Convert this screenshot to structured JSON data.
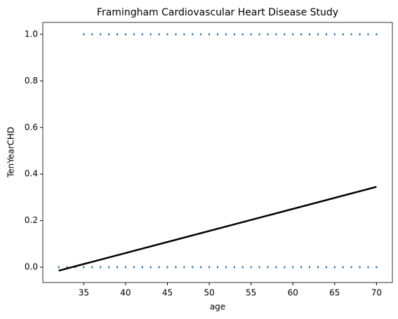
{
  "chart_data": {
    "type": "scatter",
    "title": "Framingham Cardiovascular Heart Disease Study",
    "xlabel": "age",
    "ylabel": "TenYearCHD",
    "xlim": [
      30.1,
      71.9
    ],
    "ylim": [
      -0.066,
      1.051
    ],
    "xticks": [
      35,
      40,
      45,
      50,
      55,
      60,
      65,
      70
    ],
    "yticks": [
      {
        "value": 0,
        "label": "0.0"
      },
      {
        "value": 0.2,
        "label": "0.2"
      },
      {
        "value": 0.4,
        "label": "0.4"
      },
      {
        "value": 0.6,
        "label": "0.6"
      },
      {
        "value": 0.8,
        "label": "0.8"
      },
      {
        "value": 1,
        "label": "1.0"
      }
    ],
    "series": [
      {
        "color": "#1f77b4",
        "x": [
          32,
          33,
          34,
          35,
          36,
          37,
          38,
          39,
          40,
          41,
          42,
          43,
          44,
          45,
          46,
          47,
          48,
          49,
          50,
          51,
          52,
          53,
          54,
          55,
          56,
          57,
          58,
          59,
          60,
          61,
          62,
          63,
          64,
          65,
          66,
          67,
          68,
          69,
          70
        ],
        "values": [
          0,
          0,
          0,
          0,
          0,
          0,
          0,
          0,
          0,
          0,
          0,
          0,
          0,
          0,
          0,
          0,
          0,
          0,
          0,
          0,
          0,
          0,
          0,
          0,
          0,
          0,
          0,
          0,
          0,
          0,
          0,
          0,
          0,
          0,
          0,
          0,
          0,
          0,
          0
        ]
      },
      {
        "color": "#1f77b4",
        "x": [
          35,
          36,
          37,
          38,
          39,
          40,
          41,
          42,
          43,
          44,
          45,
          46,
          47,
          48,
          49,
          50,
          51,
          52,
          53,
          54,
          55,
          56,
          57,
          58,
          59,
          60,
          61,
          62,
          63,
          64,
          65,
          66,
          67,
          68,
          69,
          70
        ],
        "values": [
          1,
          1,
          1,
          1,
          1,
          1,
          1,
          1,
          1,
          1,
          1,
          1,
          1,
          1,
          1,
          1,
          1,
          1,
          1,
          1,
          1,
          1,
          1,
          1,
          1,
          1,
          1,
          1,
          1,
          1,
          1,
          1,
          1,
          1,
          1,
          1
        ]
      }
    ],
    "line": {
      "color": "#000000",
      "x": [
        32,
        70
      ],
      "values": [
        -0.015,
        0.345
      ]
    }
  }
}
